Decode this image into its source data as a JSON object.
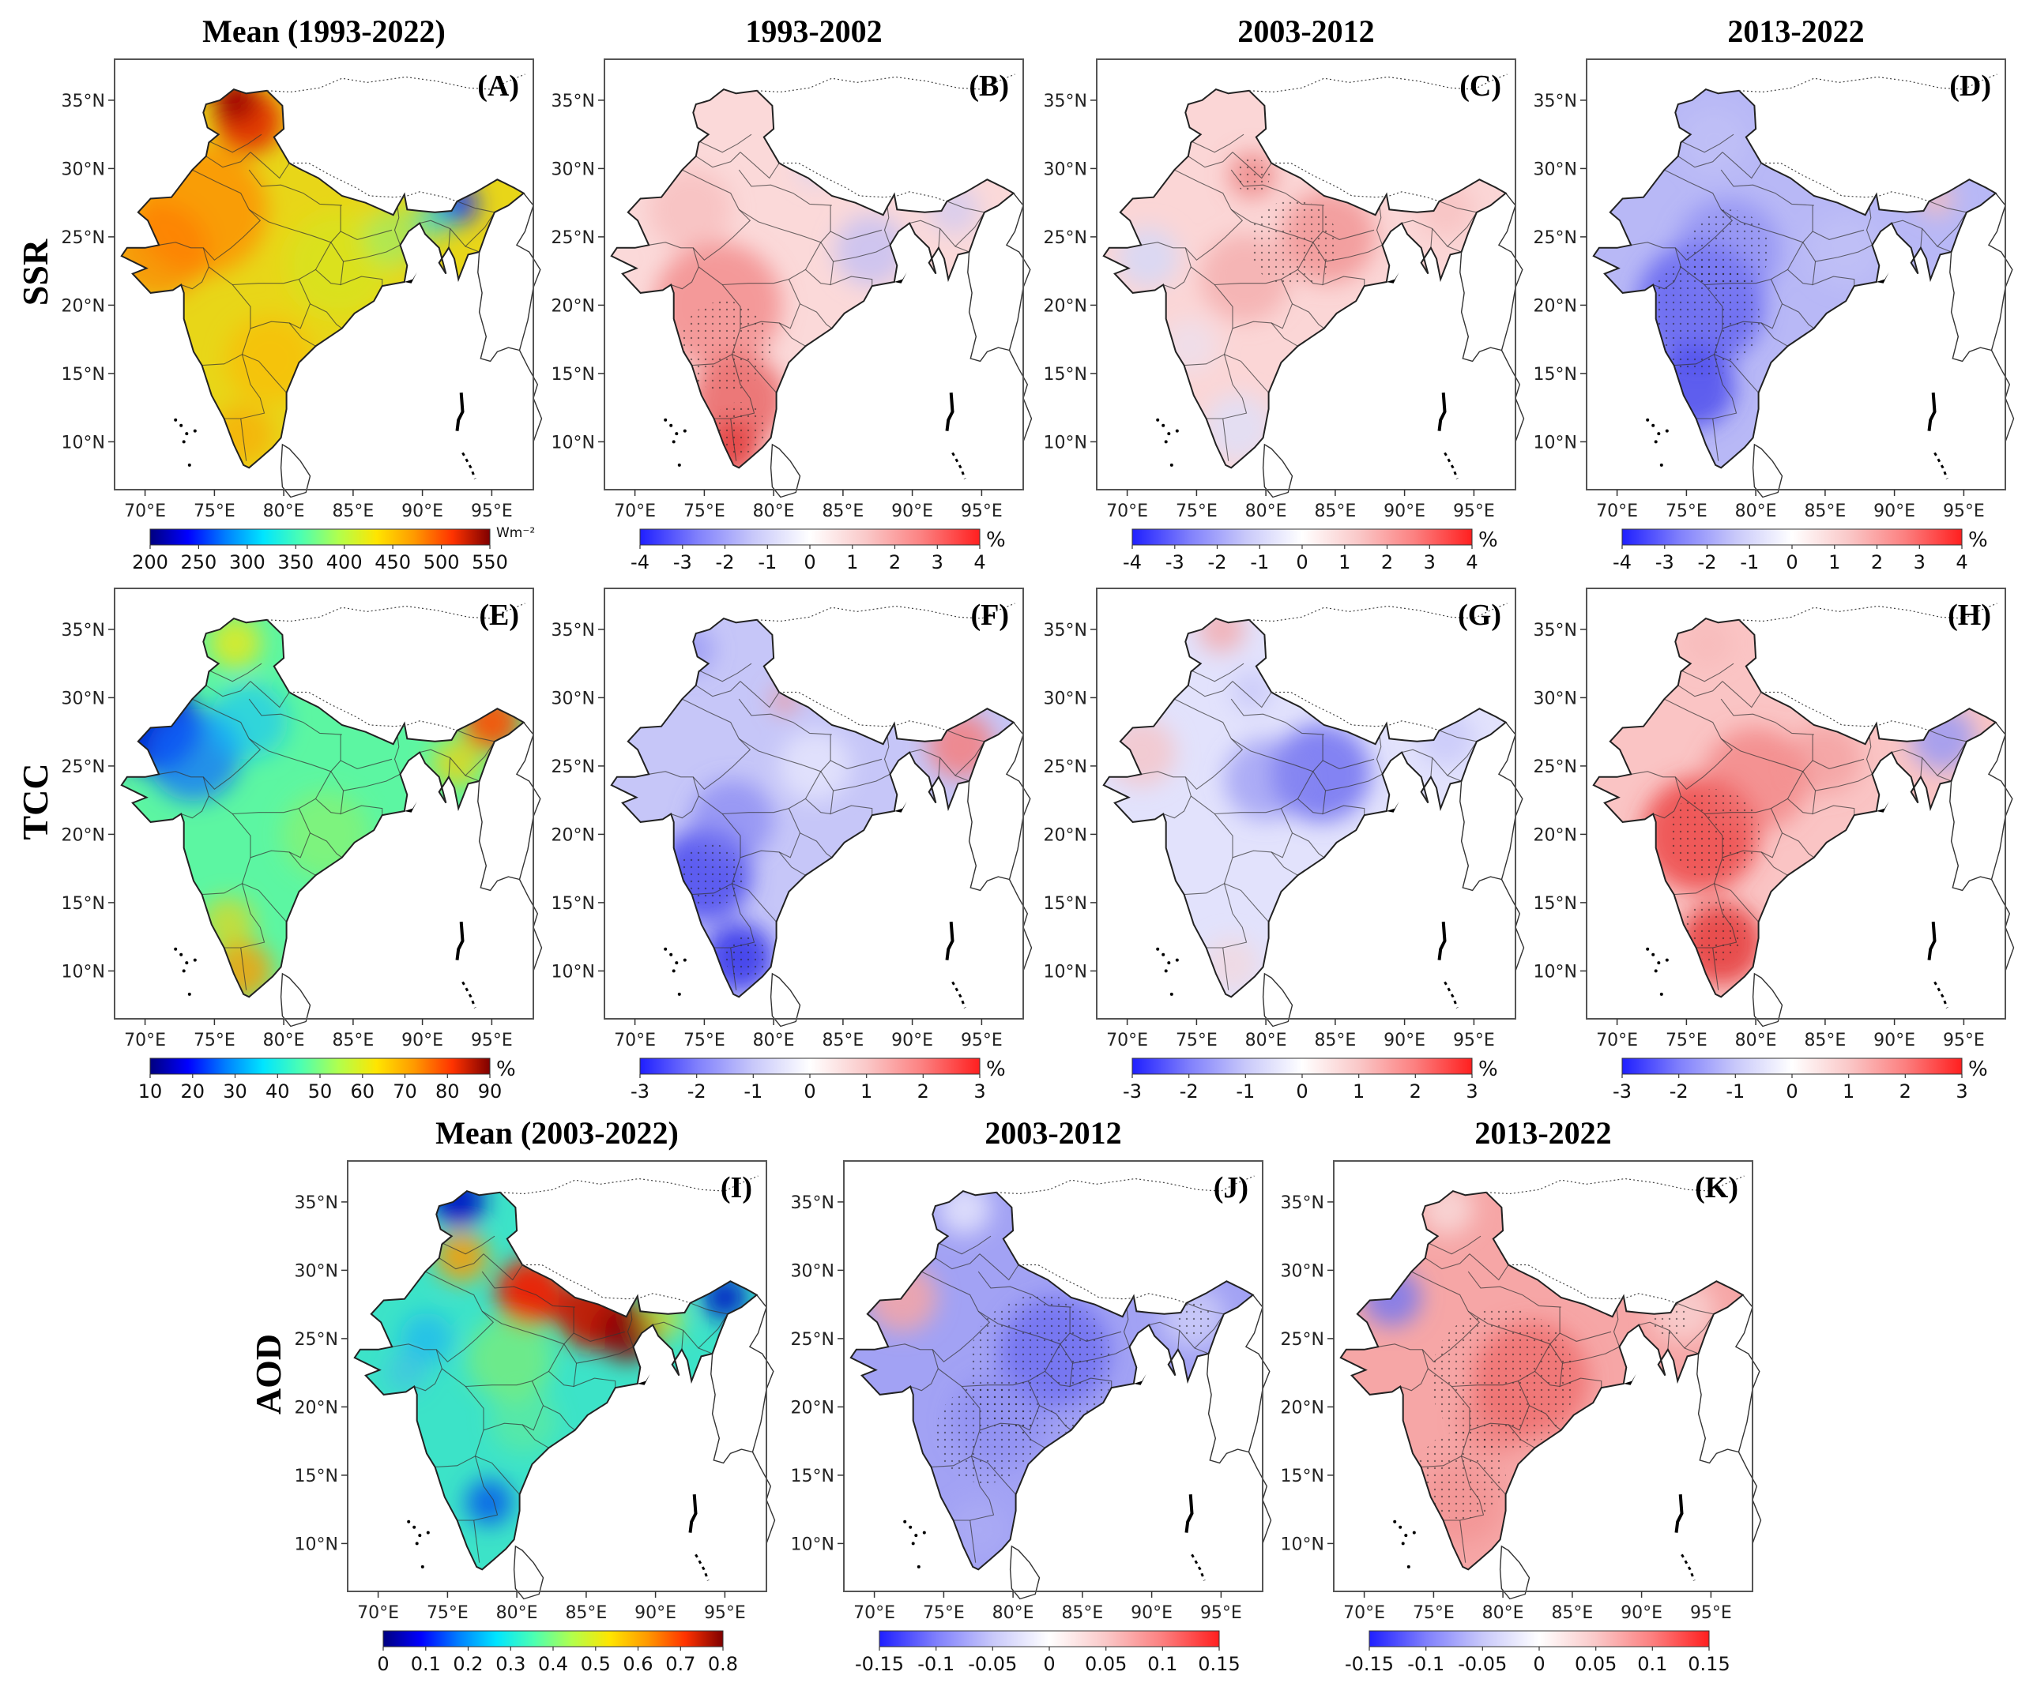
{
  "figure": {
    "row_labels": [
      "SSR",
      "TCC",
      "AOD"
    ],
    "lat_ticks": [
      "35°N",
      "30°N",
      "25°N",
      "20°N",
      "15°N",
      "10°N"
    ],
    "lon_ticks": [
      "70°E",
      "75°E",
      "80°E",
      "85°E",
      "90°E",
      "95°E"
    ],
    "colors": {
      "rainbow": [
        "#00007f",
        "#0000ff",
        "#007fff",
        "#00e5ff",
        "#4cffb2",
        "#b2ff4c",
        "#ffe500",
        "#ff9900",
        "#ff3300",
        "#7f0000"
      ],
      "diverging": [
        "#1f1fff",
        "#7f7ffc",
        "#c8c8fa",
        "#ffffff",
        "#fac8c8",
        "#fc7f7f",
        "#ff1f1f"
      ],
      "border": "#222222",
      "frame": "#555555"
    },
    "panels": [
      {
        "id": "A",
        "letter": "(A)",
        "title": "Mean (1993-2022)",
        "variable": "SSR",
        "style": "mean",
        "pattern": "ssr_mean",
        "colorbar": {
          "ticks": [
            "200",
            "250",
            "300",
            "350",
            "400",
            "450",
            "500",
            "550"
          ],
          "unit": "Wm⁻²",
          "scale": "rainbow"
        }
      },
      {
        "id": "B",
        "letter": "(B)",
        "title": "1993-2002",
        "variable": "SSR",
        "style": "anomaly",
        "pattern": "ssr_b",
        "stipple": true,
        "colorbar": {
          "ticks": [
            "-4",
            "-3",
            "-2",
            "-1",
            "0",
            "1",
            "2",
            "3",
            "4"
          ],
          "unit": "%",
          "scale": "diverging"
        }
      },
      {
        "id": "C",
        "letter": "(C)",
        "title": "2003-2012",
        "variable": "SSR",
        "style": "anomaly",
        "pattern": "ssr_c",
        "stipple": true,
        "colorbar": {
          "ticks": [
            "-4",
            "-3",
            "-2",
            "-1",
            "0",
            "1",
            "2",
            "3",
            "4"
          ],
          "unit": "%",
          "scale": "diverging"
        }
      },
      {
        "id": "D",
        "letter": "(D)",
        "title": "2013-2022",
        "variable": "SSR",
        "style": "anomaly",
        "pattern": "ssr_d",
        "stipple": true,
        "colorbar": {
          "ticks": [
            "-4",
            "-3",
            "-2",
            "-1",
            "0",
            "1",
            "2",
            "3",
            "4"
          ],
          "unit": "%",
          "scale": "diverging"
        }
      },
      {
        "id": "E",
        "letter": "(E)",
        "title": "",
        "variable": "TCC",
        "style": "mean",
        "pattern": "tcc_mean",
        "colorbar": {
          "ticks": [
            "10",
            "20",
            "30",
            "40",
            "50",
            "60",
            "70",
            "80",
            "90"
          ],
          "unit": "%",
          "scale": "rainbow"
        }
      },
      {
        "id": "F",
        "letter": "(F)",
        "title": "",
        "variable": "TCC",
        "style": "anomaly",
        "pattern": "tcc_f",
        "stipple": true,
        "colorbar": {
          "ticks": [
            "-3",
            "-2",
            "-1",
            "0",
            "1",
            "2",
            "3"
          ],
          "unit": "%",
          "scale": "diverging"
        }
      },
      {
        "id": "G",
        "letter": "(G)",
        "title": "",
        "variable": "TCC",
        "style": "anomaly",
        "pattern": "tcc_g",
        "stipple": false,
        "colorbar": {
          "ticks": [
            "-3",
            "-2",
            "-1",
            "0",
            "1",
            "2",
            "3"
          ],
          "unit": "%",
          "scale": "diverging"
        }
      },
      {
        "id": "H",
        "letter": "(H)",
        "title": "",
        "variable": "TCC",
        "style": "anomaly",
        "pattern": "tcc_h",
        "stipple": true,
        "colorbar": {
          "ticks": [
            "-3",
            "-2",
            "-1",
            "0",
            "1",
            "2",
            "3"
          ],
          "unit": "%",
          "scale": "diverging"
        }
      },
      {
        "id": "I",
        "letter": "(I)",
        "title": "Mean (2003-2022)",
        "variable": "AOD",
        "style": "mean",
        "pattern": "aod_mean",
        "colorbar": {
          "ticks": [
            "0",
            "0.1",
            "0.2",
            "0.3",
            "0.4",
            "0.5",
            "0.6",
            "0.7",
            "0.8"
          ],
          "unit": "",
          "scale": "rainbow"
        }
      },
      {
        "id": "J",
        "letter": "(J)",
        "title": "2003-2012",
        "variable": "AOD",
        "style": "anomaly",
        "pattern": "aod_j",
        "stipple": true,
        "colorbar": {
          "ticks": [
            "-0.15",
            "-0.1",
            "-0.05",
            "0",
            "0.05",
            "0.1",
            "0.15"
          ],
          "unit": "",
          "scale": "diverging"
        }
      },
      {
        "id": "K",
        "letter": "(K)",
        "title": "2013-2022",
        "variable": "AOD",
        "style": "anomaly",
        "pattern": "aod_k",
        "stipple": true,
        "colorbar": {
          "ticks": [
            "-0.15",
            "-0.1",
            "-0.05",
            "0",
            "0.05",
            "0.1",
            "0.15"
          ],
          "unit": "",
          "scale": "diverging"
        }
      }
    ]
  }
}
